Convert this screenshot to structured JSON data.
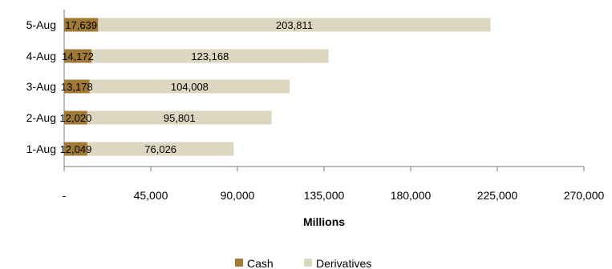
{
  "chart_data": {
    "type": "bar",
    "orientation": "horizontal",
    "stacked": true,
    "categories": [
      "5-Aug",
      "4-Aug",
      "3-Aug",
      "2-Aug",
      "1-Aug"
    ],
    "series": [
      {
        "name": "Cash",
        "values": [
          17639,
          14172,
          13178,
          12020,
          12049
        ],
        "labels": [
          "17,639",
          "14,172",
          "13,178",
          "12,020",
          "12,049"
        ],
        "color": "#a07a35"
      },
      {
        "name": "Derivatives",
        "values": [
          203811,
          123168,
          104008,
          95801,
          76026
        ],
        "labels": [
          "203,811",
          "123,168",
          "104,008",
          "95,801",
          "76,026"
        ],
        "color": "#ddd6c0"
      }
    ],
    "xlabel": "Millions",
    "xlim": [
      0,
      270000
    ],
    "xticks": [
      0,
      45000,
      90000,
      135000,
      180000,
      225000,
      270000
    ],
    "xtick_labels": [
      "-",
      "45,000",
      "90,000",
      "135,000",
      "180,000",
      "225,000",
      "270,000"
    ],
    "grid": false,
    "legend_position": "bottom"
  }
}
